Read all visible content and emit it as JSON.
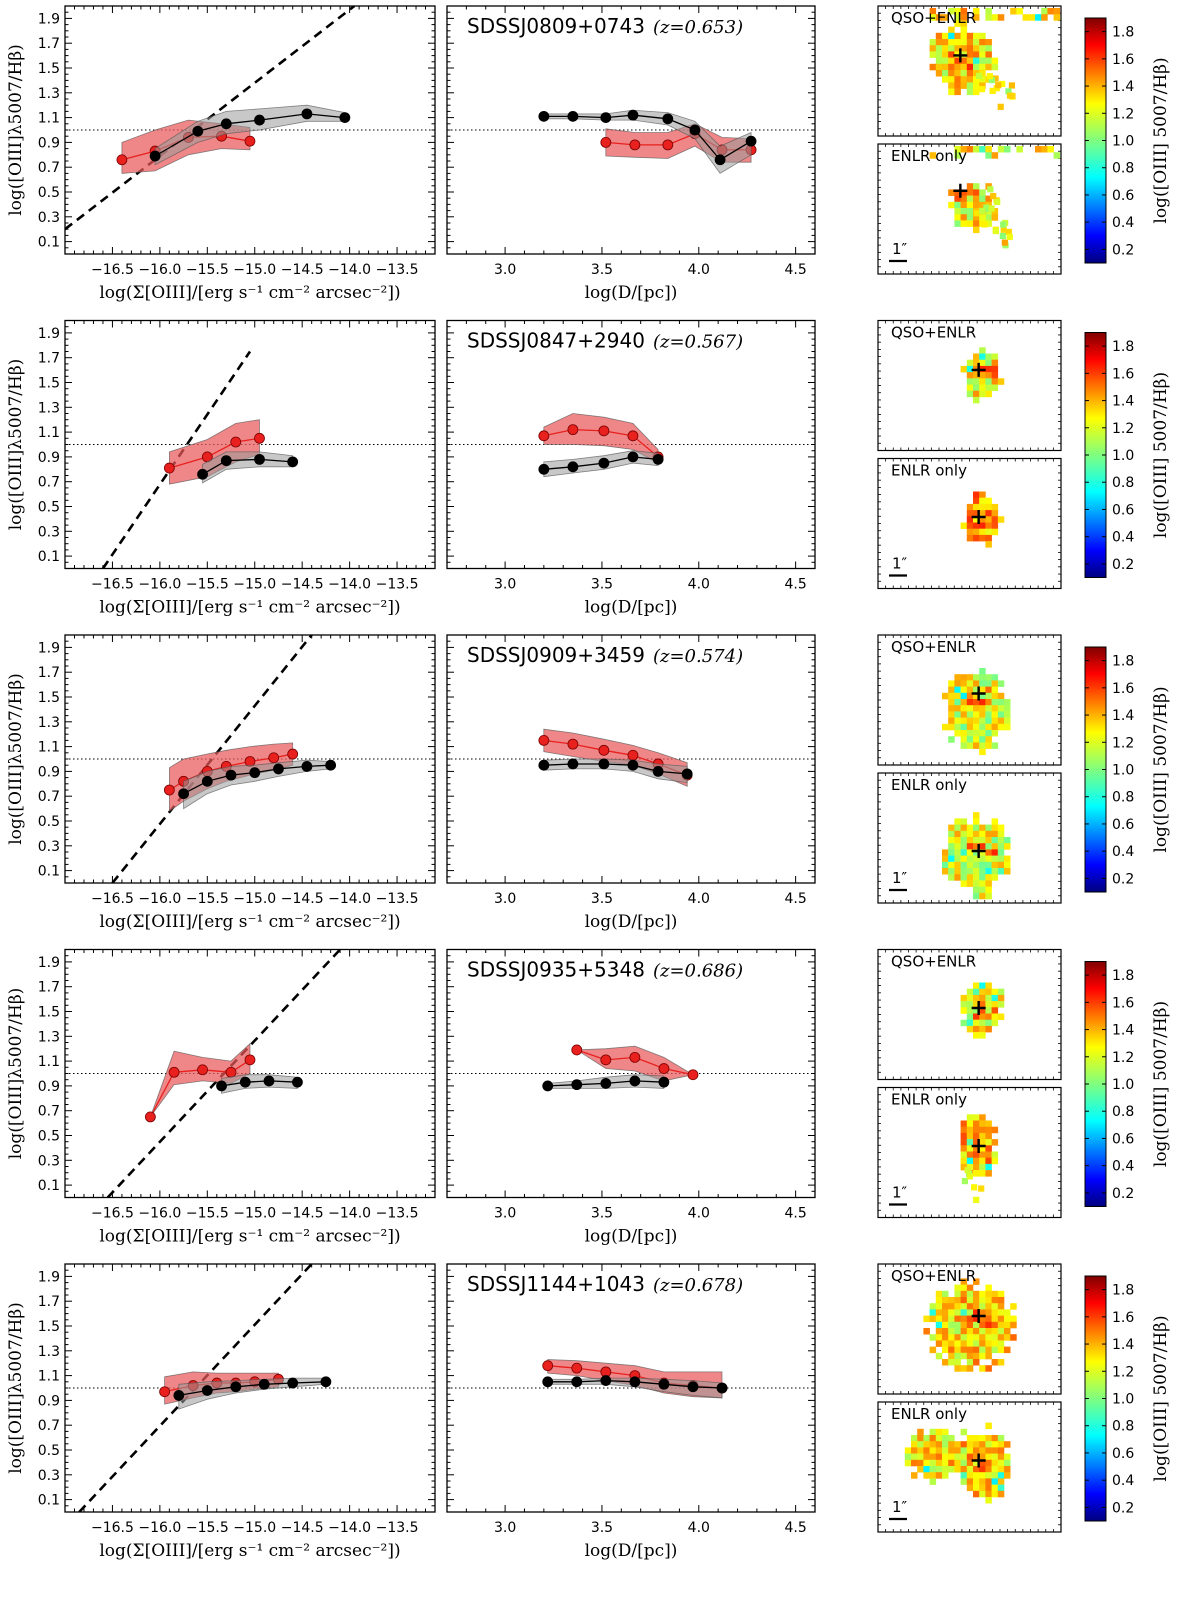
{
  "chart_data": {
    "type": "line",
    "shared": {
      "left_xlabel": "log(Σ[OIII]/[erg s⁻¹ cm⁻² arcsec⁻²])",
      "mid_xlabel": "log(D/[pc])",
      "ylabel": "log([OIII]λ5007/Hβ)",
      "cbar_label": "log([OIII] 5007/Hβ)",
      "map_label_top": "QSO+ENLR",
      "map_label_bottom": "ENLR only",
      "scale_bar": "1″",
      "left_xticks": [
        "−16.5",
        "−16.0",
        "−15.5",
        "−15.0",
        "−14.5",
        "−14.0",
        "−13.5"
      ],
      "left_xlim": [
        -17.0,
        -13.1
      ],
      "mid_xticks": [
        "3.0",
        "3.5",
        "4.0",
        "4.5"
      ],
      "mid_xlim": [
        2.7,
        4.6
      ],
      "yticks": [
        "0.1",
        "0.3",
        "0.5",
        "0.7",
        "0.9",
        "1.1",
        "1.3",
        "1.5",
        "1.7",
        "1.9"
      ],
      "ylim": [
        0.0,
        2.0
      ],
      "reference_line_y": 1.0,
      "cbar_ticks": [
        "0.2",
        "0.4",
        "0.6",
        "0.8",
        "1.0",
        "1.2",
        "1.4",
        "1.6",
        "1.8"
      ],
      "cbar_range": [
        0.1,
        1.9
      ],
      "colors": {
        "red_series": "#e8201e",
        "red_band": "#e9595a",
        "black_series": "#000000",
        "grey_band": "#9a9a9a"
      }
    },
    "panels": [
      {
        "name": "SDSSJ0809+0743",
        "z_text": "(z=0.653)",
        "dashed_line": [
          [
            -17.0,
            0.2
          ],
          [
            -13.95,
            2.0
          ]
        ],
        "surface": {
          "red": {
            "x": [
              -16.4,
              -16.05,
              -15.7,
              -15.35,
              -15.05
            ],
            "y": [
              0.76,
              0.83,
              0.94,
              0.95,
              0.91
            ],
            "lo": [
              0.65,
              0.67,
              0.8,
              0.85,
              0.84
            ],
            "hi": [
              0.9,
              1.0,
              1.08,
              1.05,
              1.02
            ]
          },
          "black": {
            "x": [
              -16.05,
              -15.6,
              -15.3,
              -14.95,
              -14.45,
              -14.05
            ],
            "y": [
              0.79,
              0.99,
              1.05,
              1.08,
              1.13,
              1.1
            ],
            "lo": [
              0.72,
              0.9,
              0.97,
              1.0,
              1.07,
              1.07
            ],
            "hi": [
              0.85,
              1.07,
              1.15,
              1.17,
              1.2,
              1.14
            ]
          }
        },
        "distance": {
          "black": {
            "x": [
              3.2,
              3.35,
              3.52,
              3.66,
              3.84,
              3.98,
              4.11,
              4.27
            ],
            "y": [
              1.11,
              1.11,
              1.1,
              1.12,
              1.09,
              1.0,
              0.76,
              0.91
            ],
            "lo": [
              1.09,
              1.09,
              1.08,
              1.08,
              1.04,
              0.93,
              0.65,
              0.8
            ],
            "hi": [
              1.13,
              1.13,
              1.13,
              1.16,
              1.14,
              1.07,
              0.87,
              0.98
            ]
          },
          "red": {
            "x": [
              3.52,
              3.67,
              3.84,
              3.98,
              4.12,
              4.27
            ],
            "y": [
              0.9,
              0.88,
              0.88,
              0.97,
              0.84,
              0.84
            ],
            "lo": [
              0.79,
              0.78,
              0.77,
              0.87,
              0.74,
              0.74
            ],
            "hi": [
              1.01,
              0.98,
              0.98,
              1.05,
              0.94,
              0.93
            ]
          }
        },
        "map_top": {
          "cross": [
            0.45,
            0.38
          ],
          "seed": 11,
          "blobs": [
            [
              0.45,
              0.38,
              0.18,
              0.26
            ]
          ],
          "extras": [
            [
              0.58,
              0.56,
              6
            ],
            [
              0.66,
              0.62,
              5
            ],
            [
              0.68,
              0.72,
              4
            ]
          ],
          "topstrip": true,
          "tint": 1.05
        },
        "map_bottom": {
          "cross": [
            0.45,
            0.36
          ],
          "seed": 21,
          "blobs": [
            [
              0.5,
              0.45,
              0.13,
              0.18
            ]
          ],
          "extras": [
            [
              0.55,
              0.52,
              6
            ],
            [
              0.62,
              0.6,
              6
            ],
            [
              0.7,
              0.7,
              5
            ],
            [
              0.6,
              0.38,
              4
            ]
          ],
          "topstrip": true,
          "tint": 1.0
        }
      },
      {
        "name": "SDSSJ0847+2940",
        "z_text": "(z=0.567)",
        "dashed_line": [
          [
            -16.6,
            0.0
          ],
          [
            -15.05,
            1.75
          ]
        ],
        "surface": {
          "red": {
            "x": [
              -15.9,
              -15.5,
              -15.2,
              -14.95
            ],
            "y": [
              0.81,
              0.9,
              1.02,
              1.05
            ],
            "lo": [
              0.68,
              0.74,
              0.86,
              0.92
            ],
            "hi": [
              0.94,
              1.04,
              1.17,
              1.2
            ]
          },
          "black": {
            "x": [
              -15.55,
              -15.3,
              -14.95,
              -14.6
            ],
            "y": [
              0.76,
              0.87,
              0.88,
              0.86
            ],
            "lo": [
              0.69,
              0.8,
              0.82,
              0.82
            ],
            "hi": [
              0.84,
              0.94,
              0.94,
              0.91
            ]
          }
        },
        "distance": {
          "red": {
            "x": [
              3.2,
              3.35,
              3.51,
              3.66,
              3.79
            ],
            "y": [
              1.07,
              1.12,
              1.11,
              1.07,
              0.9
            ],
            "lo": [
              1.0,
              1.0,
              0.99,
              0.96,
              0.85
            ],
            "hi": [
              1.14,
              1.25,
              1.22,
              1.17,
              0.96
            ]
          },
          "black": {
            "x": [
              3.2,
              3.35,
              3.51,
              3.66,
              3.79
            ],
            "y": [
              0.8,
              0.82,
              0.85,
              0.9,
              0.88
            ],
            "lo": [
              0.74,
              0.77,
              0.8,
              0.85,
              0.83
            ],
            "hi": [
              0.86,
              0.88,
              0.91,
              0.95,
              0.93
            ]
          }
        },
        "map_top": {
          "cross": [
            0.55,
            0.38
          ],
          "seed": 31,
          "blobs": [
            [
              0.55,
              0.4,
              0.1,
              0.2
            ]
          ],
          "extras": [],
          "topstrip": false,
          "tint": 1.0
        },
        "map_bottom": {
          "cross": [
            0.55,
            0.45
          ],
          "seed": 41,
          "blobs": [
            [
              0.55,
              0.45,
              0.1,
              0.2
            ]
          ],
          "extras": [],
          "topstrip": false,
          "tint": 1.15
        }
      },
      {
        "name": "SDSSJ0909+3459",
        "z_text": "(z=0.574)",
        "dashed_line": [
          [
            -16.5,
            0.0
          ],
          [
            -14.4,
            2.0
          ]
        ],
        "surface": {
          "red": {
            "x": [
              -15.9,
              -15.75,
              -15.5,
              -15.3,
              -15.05,
              -14.8,
              -14.6
            ],
            "y": [
              0.75,
              0.82,
              0.9,
              0.94,
              0.98,
              1.01,
              1.04
            ],
            "lo": [
              0.58,
              0.66,
              0.76,
              0.82,
              0.87,
              0.91,
              0.95
            ],
            "hi": [
              0.93,
              1.0,
              1.04,
              1.07,
              1.1,
              1.12,
              1.13
            ]
          },
          "black": {
            "x": [
              -15.75,
              -15.5,
              -15.25,
              -15.0,
              -14.75,
              -14.45,
              -14.2
            ],
            "y": [
              0.72,
              0.82,
              0.87,
              0.89,
              0.92,
              0.94,
              0.95
            ],
            "lo": [
              0.6,
              0.72,
              0.79,
              0.82,
              0.86,
              0.9,
              0.92
            ],
            "hi": [
              0.82,
              0.9,
              0.94,
              0.95,
              0.97,
              0.99,
              0.98
            ]
          }
        },
        "distance": {
          "red": {
            "x": [
              3.2,
              3.35,
              3.51,
              3.66,
              3.79,
              3.94
            ],
            "y": [
              1.15,
              1.12,
              1.07,
              1.03,
              0.96,
              0.87
            ],
            "lo": [
              1.06,
              1.02,
              0.98,
              0.95,
              0.88,
              0.78
            ],
            "hi": [
              1.24,
              1.21,
              1.16,
              1.11,
              1.05,
              0.97
            ]
          },
          "black": {
            "x": [
              3.2,
              3.35,
              3.51,
              3.66,
              3.79,
              3.94
            ],
            "y": [
              0.95,
              0.96,
              0.96,
              0.95,
              0.9,
              0.88
            ],
            "lo": [
              0.91,
              0.92,
              0.92,
              0.9,
              0.84,
              0.81
            ],
            "hi": [
              0.99,
              1.0,
              1.0,
              0.99,
              0.96,
              0.94
            ]
          }
        },
        "map_top": {
          "cross": [
            0.55,
            0.45
          ],
          "seed": 51,
          "blobs": [
            [
              0.52,
              0.55,
              0.18,
              0.32
            ]
          ],
          "extras": [],
          "topstrip": false,
          "tint": 0.95
        },
        "map_bottom": {
          "cross": [
            0.55,
            0.6
          ],
          "seed": 61,
          "blobs": [
            [
              0.52,
              0.62,
              0.18,
              0.3
            ]
          ],
          "extras": [],
          "topstrip": false,
          "tint": 0.95
        }
      },
      {
        "name": "SDSSJ0935+5348",
        "z_text": "(z=0.686)",
        "dashed_line": [
          [
            -16.55,
            0.0
          ],
          [
            -14.1,
            2.0
          ]
        ],
        "surface": {
          "red": {
            "x": [
              -16.1,
              -15.85,
              -15.55,
              -15.25,
              -15.05
            ],
            "y": [
              0.65,
              1.01,
              1.03,
              1.01,
              1.11
            ],
            "lo": [
              0.65,
              0.91,
              0.94,
              0.92,
              1.0
            ],
            "hi": [
              0.65,
              1.18,
              1.13,
              1.1,
              1.24
            ]
          },
          "black": {
            "x": [
              -15.35,
              -15.1,
              -14.85,
              -14.55
            ],
            "y": [
              0.9,
              0.93,
              0.94,
              0.93
            ],
            "lo": [
              0.84,
              0.88,
              0.89,
              0.88
            ],
            "hi": [
              0.96,
              0.99,
              0.99,
              0.97
            ]
          }
        },
        "distance": {
          "red": {
            "x": [
              3.37,
              3.52,
              3.67,
              3.82,
              3.97
            ],
            "y": [
              1.19,
              1.11,
              1.13,
              1.04,
              0.99
            ],
            "lo": [
              1.19,
              1.04,
              1.02,
              0.94,
              0.99
            ],
            "hi": [
              1.19,
              1.2,
              1.22,
              1.13,
              0.99
            ]
          },
          "black": {
            "x": [
              3.22,
              3.37,
              3.52,
              3.67,
              3.82
            ],
            "y": [
              0.9,
              0.91,
              0.92,
              0.94,
              0.93
            ],
            "lo": [
              0.88,
              0.88,
              0.88,
              0.89,
              0.88
            ],
            "hi": [
              0.92,
              0.94,
              0.97,
              0.99,
              0.98
            ]
          }
        },
        "map_top": {
          "cross": [
            0.55,
            0.45
          ],
          "seed": 71,
          "blobs": [
            [
              0.55,
              0.42,
              0.11,
              0.24
            ]
          ],
          "extras": [],
          "topstrip": false,
          "tint": 1.0
        },
        "map_bottom": {
          "cross": [
            0.55,
            0.45
          ],
          "seed": 81,
          "blobs": [
            [
              0.53,
              0.42,
              0.1,
              0.26
            ]
          ],
          "extras": [
            [
              0.45,
              0.64,
              4
            ],
            [
              0.55,
              0.8,
              3
            ]
          ],
          "topstrip": false,
          "tint": 1.1
        }
      },
      {
        "name": "SDSSJ1144+1043",
        "z_text": "(z=0.678)",
        "dashed_line": [
          [
            -16.85,
            0.0
          ],
          [
            -14.4,
            2.0
          ]
        ],
        "surface": {
          "red": {
            "x": [
              -15.95,
              -15.65,
              -15.4,
              -15.2,
              -15.0,
              -14.75
            ],
            "y": [
              0.97,
              1.02,
              1.04,
              1.04,
              1.05,
              1.07
            ],
            "lo": [
              0.87,
              0.92,
              0.96,
              0.97,
              0.99,
              1.01
            ],
            "hi": [
              1.09,
              1.13,
              1.12,
              1.12,
              1.12,
              1.12
            ]
          },
          "black": {
            "x": [
              -15.8,
              -15.5,
              -15.2,
              -14.9,
              -14.6,
              -14.25
            ],
            "y": [
              0.94,
              0.98,
              1.01,
              1.03,
              1.04,
              1.05
            ],
            "lo": [
              0.83,
              0.91,
              0.96,
              0.99,
              1.01,
              1.03
            ],
            "hi": [
              1.03,
              1.05,
              1.06,
              1.07,
              1.08,
              1.08
            ]
          }
        },
        "distance": {
          "red": {
            "x": [
              3.22,
              3.37,
              3.52,
              3.67,
              3.82,
              3.97,
              4.12
            ],
            "y": [
              1.18,
              1.16,
              1.13,
              1.1,
              1.04,
              1.02,
              1.0
            ],
            "lo": [
              1.12,
              1.1,
              1.06,
              1.02,
              0.96,
              0.93,
              0.92
            ],
            "hi": [
              1.23,
              1.22,
              1.2,
              1.18,
              1.13,
              1.13,
              1.13
            ]
          },
          "black": {
            "x": [
              3.22,
              3.37,
              3.52,
              3.67,
              3.82,
              3.97,
              4.12
            ],
            "y": [
              1.05,
              1.05,
              1.06,
              1.05,
              1.03,
              1.01,
              1.0
            ],
            "lo": [
              1.03,
              1.03,
              1.03,
              1.01,
              0.97,
              0.94,
              0.92
            ],
            "hi": [
              1.07,
              1.07,
              1.08,
              1.08,
              1.07,
              1.06,
              1.04
            ]
          }
        },
        "map_top": {
          "cross": [
            0.55,
            0.4
          ],
          "seed": 91,
          "blobs": [
            [
              0.5,
              0.45,
              0.24,
              0.33
            ]
          ],
          "extras": [],
          "topstrip": false,
          "tint": 1.05
        },
        "map_bottom": {
          "cross": [
            0.55,
            0.45
          ],
          "seed": 101,
          "blobs": [
            [
              0.55,
              0.45,
              0.16,
              0.28
            ],
            [
              0.28,
              0.38,
              0.15,
              0.2
            ]
          ],
          "extras": [],
          "topstrip": false,
          "tint": 1.05
        }
      }
    ]
  }
}
